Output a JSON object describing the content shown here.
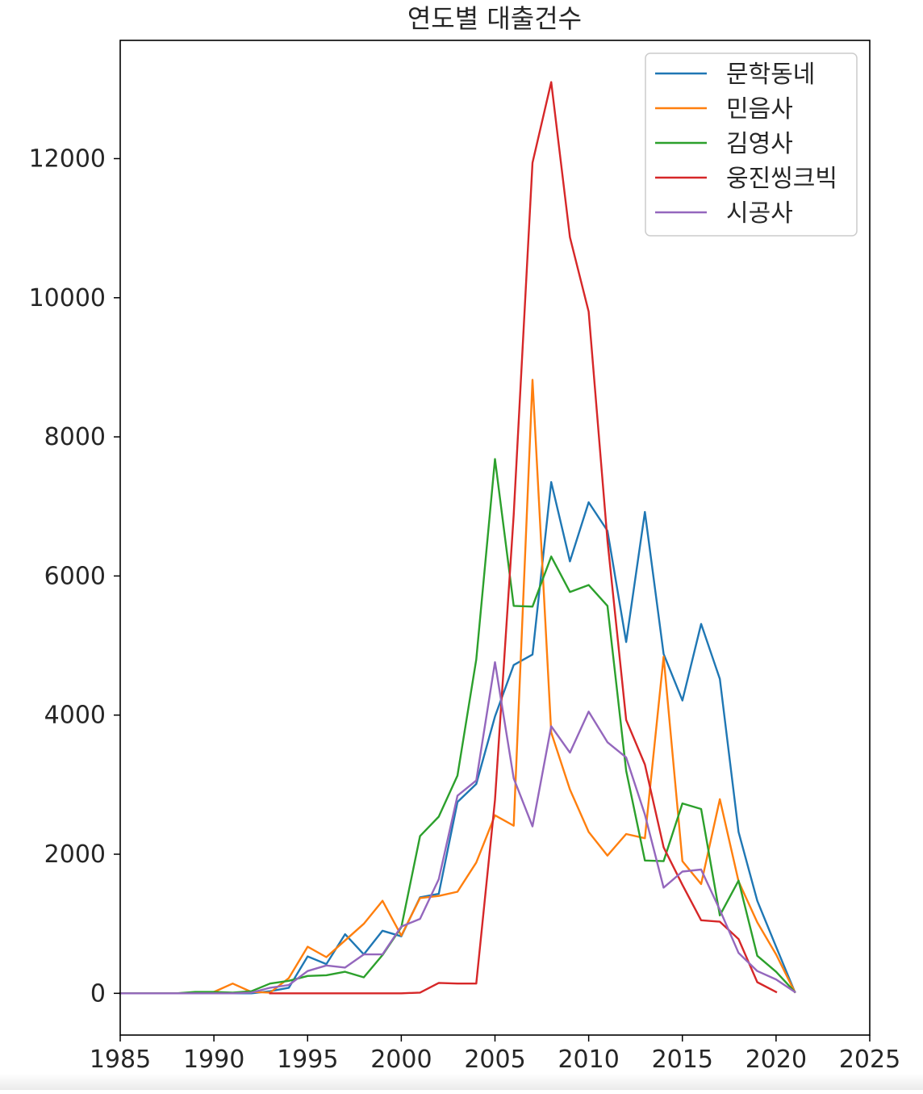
{
  "chart_data": {
    "type": "line",
    "title": "연도별 대출건수",
    "xlabel": "",
    "ylabel": "",
    "xlim": [
      1985,
      2025
    ],
    "ylim": [
      -600,
      13700
    ],
    "x_ticks": [
      1985,
      1990,
      1995,
      2000,
      2005,
      2010,
      2015,
      2020,
      2025
    ],
    "y_ticks": [
      0,
      2000,
      4000,
      6000,
      8000,
      10000,
      12000
    ],
    "grid": false,
    "legend_position": "top-right",
    "series": [
      {
        "name": "문학동네",
        "color": "#1f77b4",
        "x": [
          1985,
          1986,
          1987,
          1988,
          1989,
          1990,
          1991,
          1992,
          1993,
          1994,
          1995,
          1996,
          1997,
          1998,
          1999,
          2000,
          2001,
          2002,
          2003,
          2004,
          2005,
          2006,
          2007,
          2008,
          2009,
          2010,
          2011,
          2012,
          2013,
          2014,
          2015,
          2016,
          2017,
          2018,
          2019,
          2020,
          2021
        ],
        "y": [
          0,
          0,
          0,
          0,
          0,
          0,
          0,
          0,
          30,
          80,
          530,
          420,
          850,
          560,
          900,
          820,
          1380,
          1430,
          2750,
          3010,
          3980,
          4720,
          4870,
          7350,
          6210,
          7060,
          6650,
          5050,
          6920,
          4880,
          4210,
          5310,
          4520,
          2320,
          1330,
          670,
          20
        ]
      },
      {
        "name": "민음사",
        "color": "#ff7f0e",
        "x": [
          1985,
          1986,
          1987,
          1988,
          1989,
          1990,
          1991,
          1992,
          1993,
          1994,
          1995,
          1996,
          1997,
          1998,
          1999,
          2000,
          2001,
          2002,
          2003,
          2004,
          2005,
          2006,
          2007,
          2008,
          2009,
          2010,
          2011,
          2012,
          2013,
          2014,
          2015,
          2016,
          2017,
          2018,
          2019,
          2020,
          2021
        ],
        "y": [
          0,
          0,
          0,
          0,
          10,
          20,
          140,
          20,
          10,
          220,
          670,
          520,
          760,
          1000,
          1330,
          830,
          1370,
          1400,
          1460,
          1880,
          2560,
          2410,
          8820,
          3750,
          2930,
          2320,
          1980,
          2290,
          2230,
          4840,
          1900,
          1570,
          2790,
          1610,
          1020,
          560,
          20
        ]
      },
      {
        "name": "김영사",
        "color": "#2ca02c",
        "x": [
          1985,
          1986,
          1987,
          1988,
          1989,
          1990,
          1991,
          1992,
          1993,
          1994,
          1995,
          1996,
          1997,
          1998,
          1999,
          2000,
          2001,
          2002,
          2003,
          2004,
          2005,
          2006,
          2007,
          2008,
          2009,
          2010,
          2011,
          2012,
          2013,
          2014,
          2015,
          2016,
          2017,
          2018,
          2019,
          2020,
          2021
        ],
        "y": [
          0,
          0,
          0,
          0,
          20,
          20,
          10,
          30,
          140,
          180,
          250,
          260,
          310,
          230,
          550,
          950,
          2260,
          2540,
          3130,
          4800,
          7680,
          5570,
          5560,
          6280,
          5770,
          5870,
          5570,
          3200,
          1910,
          1900,
          2730,
          2650,
          1120,
          1620,
          540,
          310,
          20
        ]
      },
      {
        "name": "웅진씽크빅",
        "color": "#d62728",
        "x": [
          1993,
          1994,
          1995,
          1996,
          1997,
          1998,
          1999,
          2000,
          2001,
          2002,
          2003,
          2004,
          2005,
          2006,
          2007,
          2008,
          2009,
          2010,
          2011,
          2012,
          2013,
          2014,
          2015,
          2016,
          2017,
          2018,
          2019,
          2020
        ],
        "y": [
          0,
          0,
          0,
          0,
          0,
          0,
          0,
          0,
          10,
          150,
          140,
          140,
          2780,
          6880,
          11940,
          13100,
          10870,
          9800,
          6510,
          3930,
          3290,
          2100,
          1560,
          1050,
          1030,
          780,
          160,
          20
        ]
      },
      {
        "name": "시공사",
        "color": "#9467bd",
        "x": [
          1985,
          1986,
          1987,
          1988,
          1989,
          1990,
          1991,
          1992,
          1993,
          1994,
          1995,
          1996,
          1997,
          1998,
          1999,
          2000,
          2001,
          2002,
          2003,
          2004,
          2005,
          2006,
          2007,
          2008,
          2009,
          2010,
          2011,
          2012,
          2013,
          2014,
          2015,
          2016,
          2017,
          2018,
          2019,
          2020,
          2021
        ],
        "y": [
          0,
          0,
          0,
          0,
          0,
          0,
          0,
          10,
          80,
          120,
          320,
          400,
          370,
          560,
          560,
          960,
          1070,
          1640,
          2840,
          3060,
          4760,
          3090,
          2400,
          3840,
          3460,
          4050,
          3610,
          3390,
          2570,
          1520,
          1750,
          1780,
          1200,
          580,
          320,
          200,
          20
        ]
      }
    ]
  }
}
